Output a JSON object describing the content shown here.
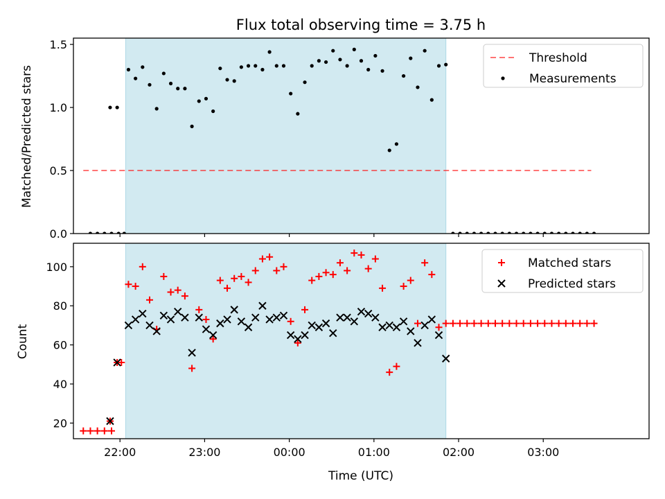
{
  "title": "Flux total observing time = 3.75 h",
  "colors": {
    "shade": "#add8e6",
    "threshold": "#ff0000",
    "measurement": "#000000",
    "matched": "#ff0000",
    "predicted": "#000000"
  },
  "chart_data": [
    {
      "type": "scatter",
      "ylabel": "Matched/Predicted stars",
      "ylim": [
        0,
        1.55
      ],
      "xlim": [
        "21:27",
        "04:15"
      ],
      "x_axis_type": "time",
      "yticks": [
        "0.0",
        "0.5",
        "1.0",
        "1.5"
      ],
      "legend": {
        "placement": "top-right",
        "entries": [
          "Threshold",
          "Measurements"
        ]
      },
      "shaded_interval": [
        "22:04",
        "01:51"
      ],
      "threshold": {
        "name": "Threshold",
        "y": 0.5,
        "x_range": [
          "21:34",
          "03:34"
        ]
      },
      "series": [
        {
          "name": "Measurements",
          "points": [
            [
              "21:39",
              0
            ],
            [
              "21:44",
              0
            ],
            [
              "21:49",
              0
            ],
            [
              "21:54",
              0
            ],
            [
              "21:59",
              0
            ],
            [
              "21:53",
              1.0
            ],
            [
              "21:58",
              1.0
            ],
            [
              "22:03",
              0
            ],
            [
              "22:06",
              1.3
            ],
            [
              "22:11",
              1.23
            ],
            [
              "22:16",
              1.32
            ],
            [
              "22:21",
              1.18
            ],
            [
              "22:26",
              0.99
            ],
            [
              "22:31",
              1.27
            ],
            [
              "22:36",
              1.19
            ],
            [
              "22:41",
              1.15
            ],
            [
              "22:46",
              1.15
            ],
            [
              "22:51",
              0.85
            ],
            [
              "22:56",
              1.05
            ],
            [
              "23:01",
              1.07
            ],
            [
              "23:06",
              0.97
            ],
            [
              "23:11",
              1.31
            ],
            [
              "23:16",
              1.22
            ],
            [
              "23:21",
              1.21
            ],
            [
              "23:26",
              1.32
            ],
            [
              "23:31",
              1.33
            ],
            [
              "23:36",
              1.33
            ],
            [
              "23:41",
              1.3
            ],
            [
              "23:46",
              1.44
            ],
            [
              "23:51",
              1.33
            ],
            [
              "23:56",
              1.33
            ],
            [
              "00:01",
              1.11
            ],
            [
              "00:06",
              0.95
            ],
            [
              "00:11",
              1.2
            ],
            [
              "00:16",
              1.33
            ],
            [
              "00:21",
              1.37
            ],
            [
              "00:26",
              1.36
            ],
            [
              "00:31",
              1.45
            ],
            [
              "00:36",
              1.38
            ],
            [
              "00:41",
              1.33
            ],
            [
              "00:46",
              1.46
            ],
            [
              "00:51",
              1.37
            ],
            [
              "00:56",
              1.3
            ],
            [
              "01:01",
              1.41
            ],
            [
              "01:06",
              1.29
            ],
            [
              "01:11",
              0.66
            ],
            [
              "01:16",
              0.71
            ],
            [
              "01:21",
              1.25
            ],
            [
              "01:26",
              1.39
            ],
            [
              "01:31",
              1.16
            ],
            [
              "01:36",
              1.45
            ],
            [
              "01:41",
              1.06
            ],
            [
              "01:46",
              1.33
            ],
            [
              "01:51",
              1.34
            ],
            [
              "01:56",
              0
            ],
            [
              "02:01",
              0
            ],
            [
              "02:06",
              0
            ],
            [
              "02:11",
              0
            ],
            [
              "02:16",
              0
            ],
            [
              "02:21",
              0
            ],
            [
              "02:26",
              0
            ],
            [
              "02:31",
              0
            ],
            [
              "02:36",
              0
            ],
            [
              "02:41",
              0
            ],
            [
              "02:46",
              0
            ],
            [
              "02:51",
              0
            ],
            [
              "02:56",
              0
            ],
            [
              "03:01",
              0
            ],
            [
              "03:06",
              0
            ],
            [
              "03:11",
              0
            ],
            [
              "03:16",
              0
            ],
            [
              "03:21",
              0
            ],
            [
              "03:26",
              0
            ],
            [
              "03:31",
              0
            ],
            [
              "03:36",
              0
            ]
          ]
        }
      ]
    },
    {
      "type": "scatter",
      "ylabel": "Count",
      "xlabel": "Time (UTC)",
      "ylim": [
        12,
        112
      ],
      "xlim": [
        "21:27",
        "04:15"
      ],
      "x_axis_type": "time",
      "yticks": [
        "20",
        "40",
        "60",
        "80",
        "100"
      ],
      "xticks": [
        "22:00",
        "23:00",
        "00:00",
        "01:00",
        "02:00",
        "03:00"
      ],
      "legend": {
        "placement": "top-right",
        "entries": [
          "Matched stars",
          "Predicted stars"
        ]
      },
      "shaded_interval": [
        "22:04",
        "01:51"
      ],
      "series": [
        {
          "name": "Matched stars",
          "marker": "plus",
          "points": [
            [
              "21:34",
              16
            ],
            [
              "21:39",
              16
            ],
            [
              "21:44",
              16
            ],
            [
              "21:49",
              16
            ],
            [
              "21:54",
              16
            ],
            [
              "21:53",
              21
            ],
            [
              "21:58",
              51
            ],
            [
              "22:01",
              51
            ],
            [
              "22:06",
              91
            ],
            [
              "22:11",
              90
            ],
            [
              "22:16",
              100
            ],
            [
              "22:21",
              83
            ],
            [
              "22:26",
              68
            ],
            [
              "22:31",
              95
            ],
            [
              "22:36",
              87
            ],
            [
              "22:41",
              88
            ],
            [
              "22:46",
              85
            ],
            [
              "22:51",
              48
            ],
            [
              "22:56",
              78
            ],
            [
              "23:01",
              73
            ],
            [
              "23:06",
              63
            ],
            [
              "23:11",
              93
            ],
            [
              "23:16",
              89
            ],
            [
              "23:21",
              94
            ],
            [
              "23:26",
              95
            ],
            [
              "23:31",
              92
            ],
            [
              "23:36",
              98
            ],
            [
              "23:41",
              104
            ],
            [
              "23:46",
              105
            ],
            [
              "23:51",
              98
            ],
            [
              "23:56",
              100
            ],
            [
              "00:01",
              72
            ],
            [
              "00:06",
              61
            ],
            [
              "00:11",
              78
            ],
            [
              "00:16",
              93
            ],
            [
              "00:21",
              95
            ],
            [
              "00:26",
              97
            ],
            [
              "00:31",
              96
            ],
            [
              "00:36",
              102
            ],
            [
              "00:41",
              98
            ],
            [
              "00:46",
              107
            ],
            [
              "00:51",
              106
            ],
            [
              "00:56",
              99
            ],
            [
              "01:01",
              104
            ],
            [
              "01:06",
              89
            ],
            [
              "01:11",
              46
            ],
            [
              "01:16",
              49
            ],
            [
              "01:21",
              90
            ],
            [
              "01:26",
              93
            ],
            [
              "01:31",
              71
            ],
            [
              "01:36",
              102
            ],
            [
              "01:41",
              96
            ],
            [
              "01:46",
              69
            ],
            [
              "01:51",
              71
            ],
            [
              "01:56",
              71
            ],
            [
              "02:01",
              71
            ],
            [
              "02:06",
              71
            ],
            [
              "02:11",
              71
            ],
            [
              "02:16",
              71
            ],
            [
              "02:21",
              71
            ],
            [
              "02:26",
              71
            ],
            [
              "02:31",
              71
            ],
            [
              "02:36",
              71
            ],
            [
              "02:41",
              71
            ],
            [
              "02:46",
              71
            ],
            [
              "02:51",
              71
            ],
            [
              "02:56",
              71
            ],
            [
              "03:01",
              71
            ],
            [
              "03:06",
              71
            ],
            [
              "03:11",
              71
            ],
            [
              "03:16",
              71
            ],
            [
              "03:21",
              71
            ],
            [
              "03:26",
              71
            ],
            [
              "03:31",
              71
            ],
            [
              "03:36",
              71
            ]
          ]
        },
        {
          "name": "Predicted stars",
          "marker": "x",
          "points": [
            [
              "21:53",
              21
            ],
            [
              "21:58",
              51
            ],
            [
              "22:06",
              70
            ],
            [
              "22:11",
              73
            ],
            [
              "22:16",
              76
            ],
            [
              "22:21",
              70
            ],
            [
              "22:26",
              67
            ],
            [
              "22:31",
              75
            ],
            [
              "22:36",
              73
            ],
            [
              "22:41",
              77
            ],
            [
              "22:46",
              74
            ],
            [
              "22:51",
              56
            ],
            [
              "22:56",
              74
            ],
            [
              "23:01",
              68
            ],
            [
              "23:06",
              65
            ],
            [
              "23:11",
              71
            ],
            [
              "23:16",
              73
            ],
            [
              "23:21",
              78
            ],
            [
              "23:26",
              72
            ],
            [
              "23:31",
              69
            ],
            [
              "23:36",
              74
            ],
            [
              "23:41",
              80
            ],
            [
              "23:46",
              73
            ],
            [
              "23:51",
              74
            ],
            [
              "23:56",
              75
            ],
            [
              "00:01",
              65
            ],
            [
              "00:06",
              63
            ],
            [
              "00:11",
              65
            ],
            [
              "00:16",
              70
            ],
            [
              "00:21",
              69
            ],
            [
              "00:26",
              71
            ],
            [
              "00:31",
              66
            ],
            [
              "00:36",
              74
            ],
            [
              "00:41",
              74
            ],
            [
              "00:46",
              72
            ],
            [
              "00:51",
              77
            ],
            [
              "00:56",
              76
            ],
            [
              "01:01",
              74
            ],
            [
              "01:06",
              69
            ],
            [
              "01:11",
              70
            ],
            [
              "01:16",
              69
            ],
            [
              "01:21",
              72
            ],
            [
              "01:26",
              67
            ],
            [
              "01:31",
              61
            ],
            [
              "01:36",
              70
            ],
            [
              "01:41",
              73
            ],
            [
              "01:46",
              65
            ],
            [
              "01:51",
              53
            ]
          ]
        }
      ]
    }
  ]
}
